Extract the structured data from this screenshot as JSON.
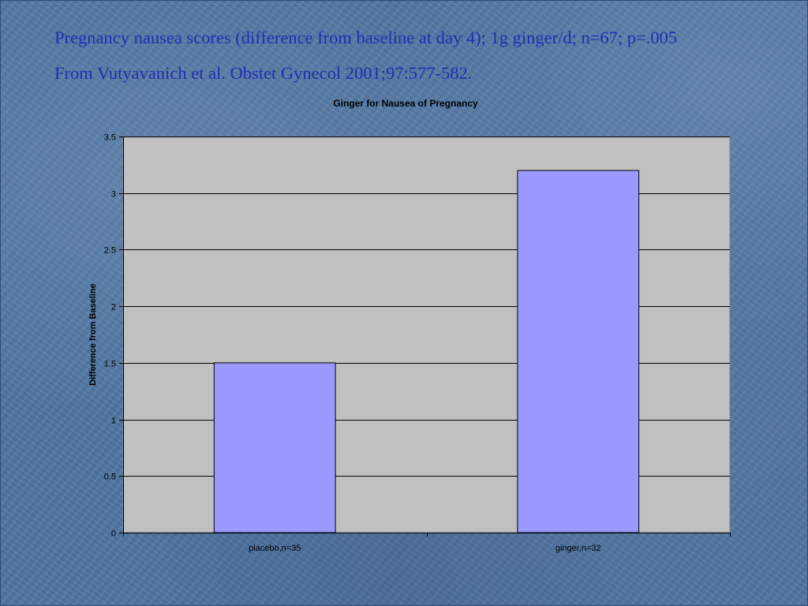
{
  "slide": {
    "line1": "Pregnancy nausea scores (difference from baseline at day 4); 1g ginger/d; n=67; p=.005",
    "line2": "From Vutyavanich et al. Obstet Gynecol 2001;97:577-582."
  },
  "colors": {
    "background": "#4f76a3",
    "text": "#1d2fb0",
    "plot_area": "#c0c0c0",
    "bar_fill": "#9999ff",
    "bar_stroke": "#000000"
  },
  "chart_data": {
    "type": "bar",
    "title": "Ginger for Nausea of Pregnancy",
    "xlabel": "",
    "ylabel": "Difference from Baseline",
    "categories": [
      "placebo,n=35",
      "ginger,n=32"
    ],
    "values": [
      1.5,
      3.2
    ],
    "ylim": [
      0,
      3.5
    ],
    "yticks": [
      0,
      0.5,
      1,
      1.5,
      2,
      2.5,
      3,
      3.5
    ],
    "ytick_labels": [
      "0",
      "0.5",
      "1",
      "1.5",
      "2",
      "2.5",
      "3",
      "3.5"
    ],
    "grid": true,
    "legend": "none"
  }
}
